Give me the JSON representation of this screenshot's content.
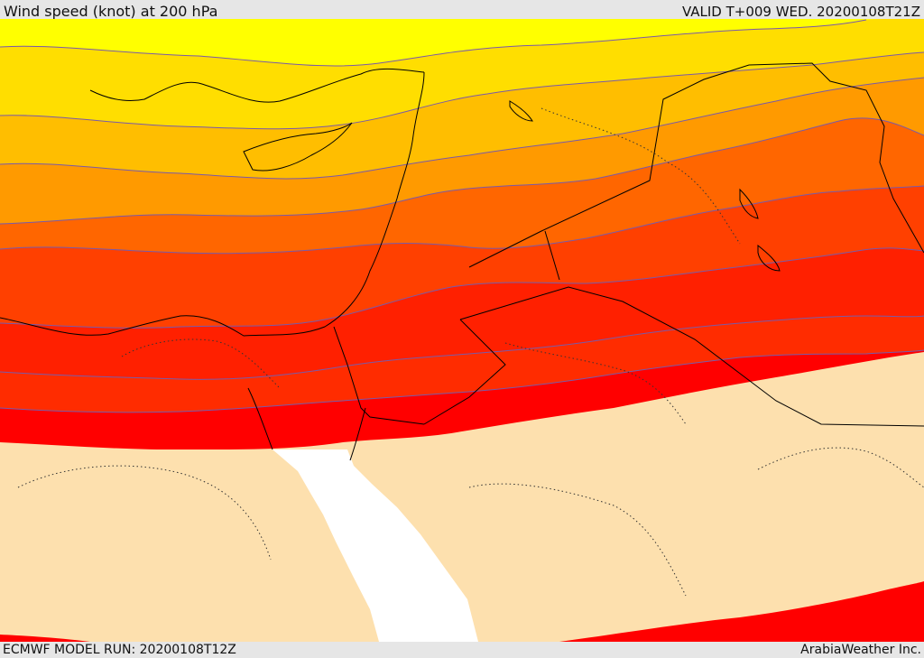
{
  "header": {
    "title": "Wind speed (knot) at 200 hPa",
    "valid": "VALID T+009 WED. 20200108T21Z"
  },
  "footer": {
    "run": "ECMWF MODEL RUN: 20200108T12Z",
    "credit": "ArabiaWeather Inc."
  },
  "map": {
    "variable": "wind speed",
    "level": "200 hPa",
    "colors": {
      "band_1": "#ffff00",
      "band_2": "#ffde00",
      "band_3": "#ffbe00",
      "band_4": "#ff9a00",
      "band_5": "#ff6600",
      "band_6": "#ff4000",
      "band_7": "#ff2000",
      "band_8": "#ff0000",
      "land": "#fde0ae",
      "sea": "#ffffff",
      "contour": "#7a5aa8"
    }
  }
}
